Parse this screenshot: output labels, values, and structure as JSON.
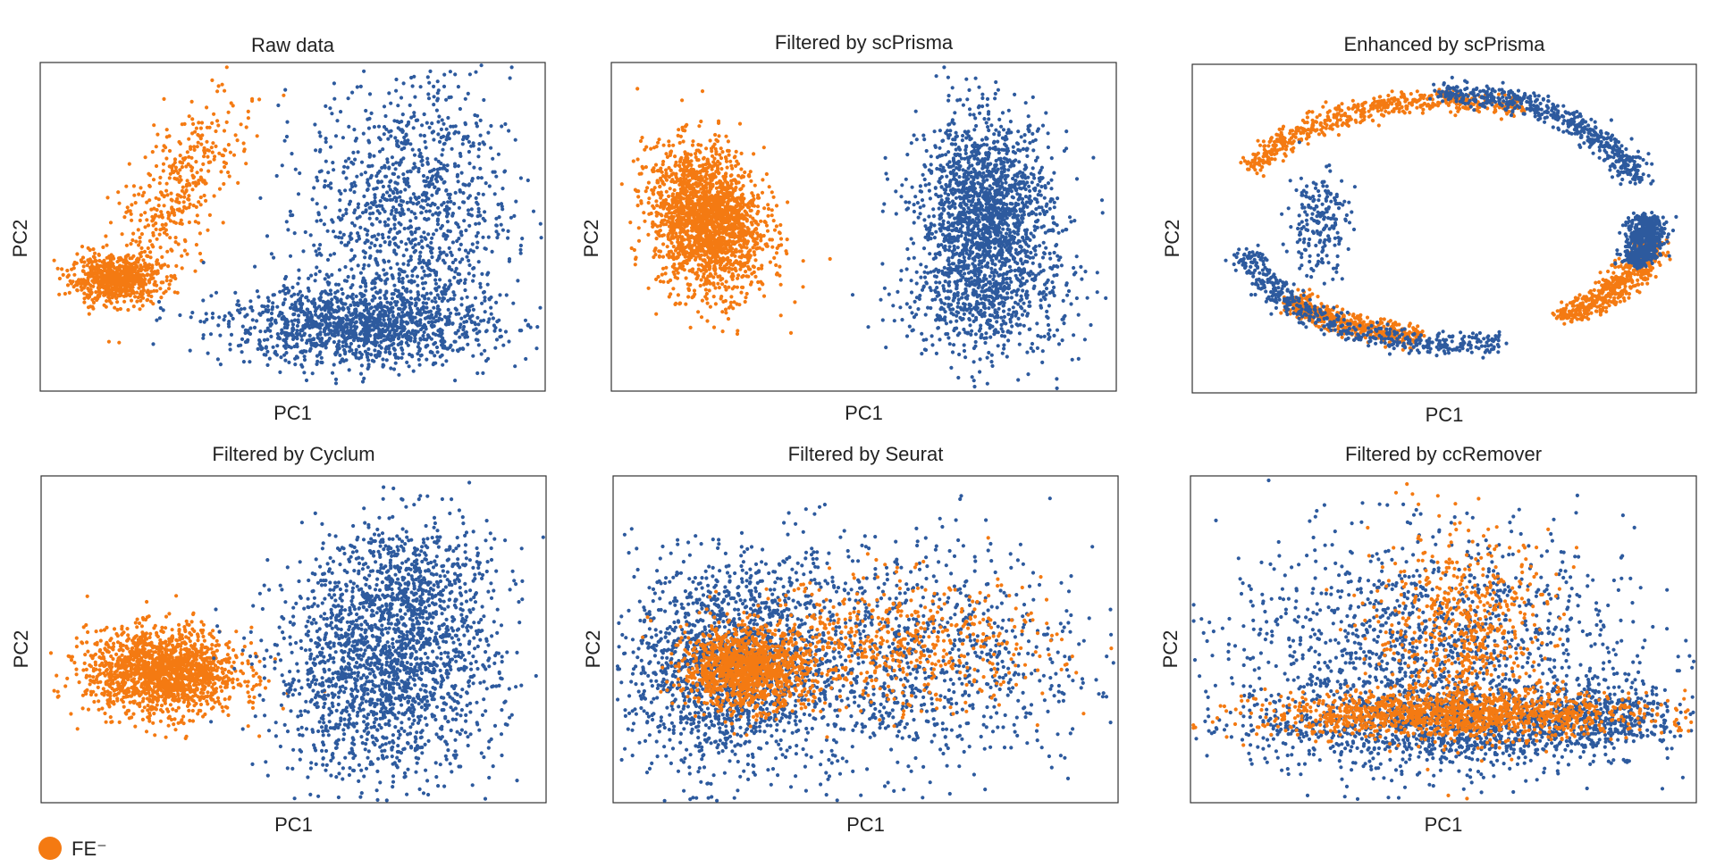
{
  "colors": {
    "fe_neg": "#f47a12",
    "fe_pos": "#2d5a9e"
  },
  "legend": {
    "label": "FE⁻",
    "color": "#f47a12"
  },
  "chart_data": [
    {
      "type": "scatter",
      "title": "Raw data",
      "xlabel": "PC1",
      "ylabel": "PC2",
      "xlim": [
        0,
        10
      ],
      "ylim": [
        0,
        10
      ],
      "grid": false,
      "series": [
        {
          "color": "#f47a12",
          "clusters": [
            {
              "cx": 1.5,
              "cy": 3.4,
              "sx": 0.45,
              "sy": 0.35,
              "n": 700
            },
            {
              "cx": 2.8,
              "cy": 6.2,
              "sx": 0.55,
              "sy": 1.4,
              "n": 380,
              "tilt": 0.9
            }
          ]
        },
        {
          "color": "#2d5a9e",
          "clusters": [
            {
              "cx": 6.3,
              "cy": 2.0,
              "sx": 1.3,
              "sy": 0.6,
              "n": 1300
            },
            {
              "cx": 7.3,
              "cy": 5.5,
              "sx": 1.0,
              "sy": 2.0,
              "n": 1100
            }
          ]
        }
      ]
    },
    {
      "type": "scatter",
      "title": "Filtered by scPrisma",
      "xlabel": "PC1",
      "ylabel": "PC2",
      "xlim": [
        0,
        10
      ],
      "ylim": [
        0,
        10
      ],
      "grid": false,
      "series": [
        {
          "color": "#f47a12",
          "clusters": [
            {
              "cx": 1.9,
              "cy": 5.2,
              "sx": 0.55,
              "sy": 1.1,
              "n": 2000,
              "tilt": -0.25
            }
          ]
        },
        {
          "color": "#2d5a9e",
          "clusters": [
            {
              "cx": 7.4,
              "cy": 5.3,
              "sx": 0.65,
              "sy": 1.5,
              "n": 1800
            },
            {
              "cx": 7.5,
              "cy": 2.6,
              "sx": 0.9,
              "sy": 0.9,
              "n": 400
            }
          ]
        }
      ]
    },
    {
      "type": "scatter",
      "title": "Enhanced by scPrisma",
      "xlabel": "PC1",
      "ylabel": "PC2",
      "xlim": [
        0,
        10
      ],
      "ylim": [
        0,
        10
      ],
      "grid": false,
      "series": [
        {
          "color": "#f47a12",
          "ring": {
            "cx": 5.0,
            "cy": 5.3,
            "rx": 4.2,
            "ry": 3.6,
            "n": 1600,
            "arcs": [
              [
                1.2,
                2.7
              ],
              [
                5.3,
                6.1
              ],
              [
                3.9,
                4.6
              ]
            ]
          }
        },
        {
          "color": "#2d5a9e",
          "ring": {
            "cx": 5.0,
            "cy": 5.3,
            "rx": 4.05,
            "ry": 3.8,
            "n": 1600,
            "arcs": [
              [
                0.3,
                1.6
              ],
              [
                3.4,
                5.0
              ],
              [
                5.9,
                6.3
              ]
            ]
          },
          "clusters": [
            {
              "cx": 2.5,
              "cy": 5.2,
              "sx": 0.3,
              "sy": 0.8,
              "n": 200
            }
          ]
        }
      ]
    },
    {
      "type": "scatter",
      "title": "Filtered by Cyclum",
      "xlabel": "PC1",
      "ylabel": "PC2",
      "xlim": [
        0,
        10
      ],
      "ylim": [
        0,
        10
      ],
      "grid": false,
      "series": [
        {
          "color": "#f47a12",
          "clusters": [
            {
              "cx": 2.4,
              "cy": 4.0,
              "sx": 0.75,
              "sy": 0.65,
              "n": 1600
            }
          ]
        },
        {
          "color": "#2d5a9e",
          "clusters": [
            {
              "cx": 6.8,
              "cy": 4.0,
              "sx": 1.1,
              "sy": 1.6,
              "n": 1700
            },
            {
              "cx": 7.3,
              "cy": 6.8,
              "sx": 0.8,
              "sy": 1.1,
              "n": 500
            }
          ]
        }
      ]
    },
    {
      "type": "scatter",
      "title": "Filtered by Seurat",
      "xlabel": "PC1",
      "ylabel": "PC2",
      "xlim": [
        0,
        10
      ],
      "ylim": [
        0,
        10
      ],
      "grid": false,
      "series": [
        {
          "color": "#2d5a9e",
          "clusters": [
            {
              "cx": 2.2,
              "cy": 4.2,
              "sx": 0.9,
              "sy": 1.5,
              "n": 1300
            },
            {
              "cx": 5.0,
              "cy": 4.4,
              "sx": 2.3,
              "sy": 1.8,
              "n": 1400
            }
          ]
        },
        {
          "color": "#f47a12",
          "clusters": [
            {
              "cx": 2.6,
              "cy": 4.1,
              "sx": 0.6,
              "sy": 0.6,
              "n": 1200
            },
            {
              "cx": 5.5,
              "cy": 4.8,
              "sx": 1.6,
              "sy": 1.0,
              "n": 600
            }
          ]
        }
      ]
    },
    {
      "type": "scatter",
      "title": "Filtered by ccRemover",
      "xlabel": "PC1",
      "ylabel": "PC2",
      "xlim": [
        0,
        10
      ],
      "ylim": [
        0,
        10
      ],
      "grid": false,
      "series": [
        {
          "color": "#2d5a9e",
          "clusters": [
            {
              "cx": 4.7,
              "cy": 4.5,
              "sx": 2.0,
              "sy": 1.8,
              "n": 1500
            },
            {
              "cx": 5.2,
              "cy": 2.3,
              "sx": 2.0,
              "sy": 0.6,
              "n": 1000
            },
            {
              "cx": 8.2,
              "cy": 2.8,
              "sx": 0.7,
              "sy": 0.5,
              "n": 300
            }
          ]
        },
        {
          "color": "#f47a12",
          "clusters": [
            {
              "cx": 5.3,
              "cy": 2.7,
              "sx": 1.9,
              "sy": 0.35,
              "n": 1300
            },
            {
              "cx": 5.4,
              "cy": 5.2,
              "sx": 0.9,
              "sy": 1.5,
              "n": 600
            }
          ]
        }
      ]
    }
  ]
}
